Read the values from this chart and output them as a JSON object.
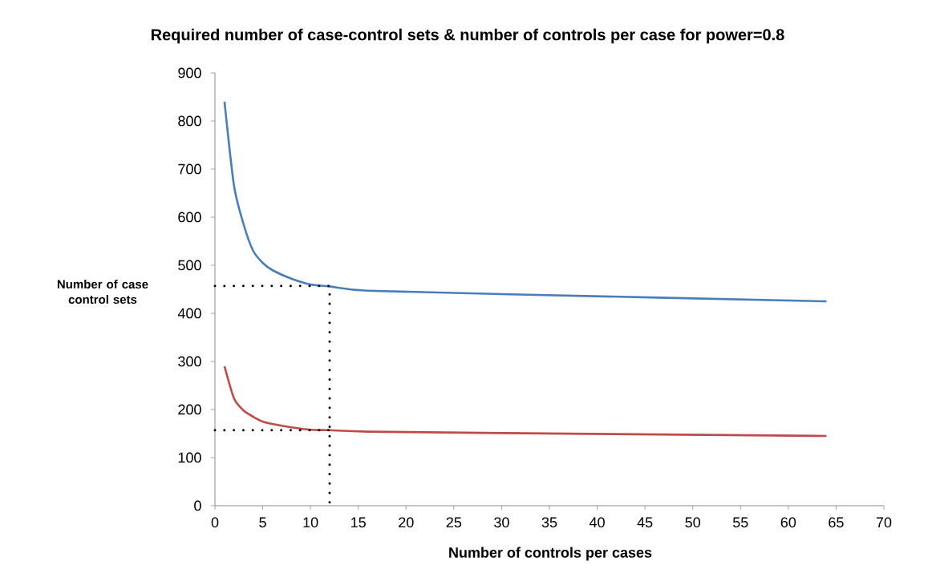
{
  "chart_data": {
    "type": "line",
    "title": "Required number of case-control sets & number of controls per case for power=0.8",
    "xlabel": "Number of controls per cases",
    "ylabel": "Number of case control sets",
    "xlim": [
      0,
      70
    ],
    "xticks": [
      0,
      5,
      10,
      15,
      20,
      25,
      30,
      35,
      40,
      45,
      50,
      55,
      60,
      65,
      70
    ],
    "ylim": [
      0,
      900
    ],
    "yticks": [
      0,
      100,
      200,
      300,
      400,
      500,
      600,
      700,
      800,
      900
    ],
    "grid": false,
    "legend": false,
    "marker": "none",
    "series": [
      {
        "color": "#4a7ebb",
        "line_style": "solid",
        "x": [
          1,
          2,
          3,
          4,
          5,
          6,
          8,
          10,
          12,
          16,
          30,
          64
        ],
        "values": [
          840,
          665,
          585,
          530,
          505,
          490,
          472,
          460,
          456,
          447,
          440,
          425
        ]
      },
      {
        "color": "#be4b48",
        "line_style": "solid",
        "x": [
          1,
          2,
          3,
          4,
          5,
          6,
          8,
          10,
          12,
          16,
          30,
          64
        ],
        "values": [
          290,
          223,
          198,
          185,
          175,
          170,
          163,
          158,
          157,
          154,
          151,
          145
        ]
      },
      {
        "color": "#000000",
        "line_style": "dotted",
        "x": [
          0,
          12,
          12
        ],
        "values": [
          457,
          457,
          0
        ]
      },
      {
        "color": "#000000",
        "line_style": "dotted",
        "x": [
          0,
          12
        ],
        "values": [
          157,
          157
        ]
      }
    ]
  }
}
